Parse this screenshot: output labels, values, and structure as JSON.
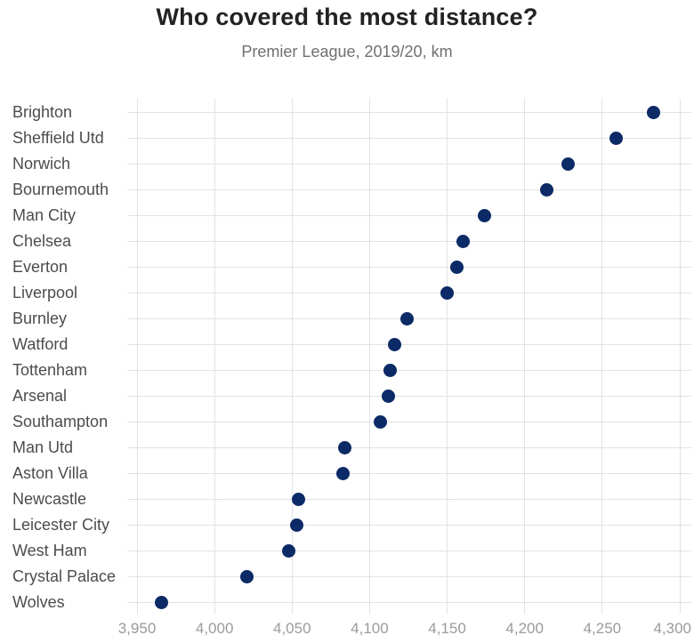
{
  "header": {
    "title": "Who covered the most distance?",
    "subtitle": "Premier League, 2019/20, km"
  },
  "colors": {
    "dot": "#0b2a66",
    "gridline": "#e2e2e2",
    "title_text": "#222222",
    "subtitle_text": "#6f6f6f",
    "label_text": "#4c4c4c",
    "axis_text": "#9b9b9b"
  },
  "chart_data": {
    "type": "scatter",
    "variant": "horizontal-dot-plot",
    "title": "Who covered the most distance?",
    "subtitle": "Premier League, 2019/20, km",
    "xlabel": "",
    "ylabel": "",
    "grid": true,
    "categories": [
      "Brighton",
      "Sheffield Utd",
      "Norwich",
      "Bournemouth",
      "Man City",
      "Chelsea",
      "Everton",
      "Liverpool",
      "Burnley",
      "Watford",
      "Tottenham",
      "Arsenal",
      "Southampton",
      "Man Utd",
      "Aston Villa",
      "Newcastle",
      "Leicester City",
      "West Ham",
      "Crystal Palace",
      "Wolves"
    ],
    "values": [
      4283,
      4259,
      4228,
      4214,
      4174,
      4160,
      4156,
      4150,
      4124,
      4116,
      4113,
      4112,
      4107,
      4084,
      4083,
      4054,
      4053,
      4048,
      4021,
      3966
    ],
    "units": "km",
    "x_ticks": [
      3950,
      4000,
      4050,
      4100,
      4150,
      4200,
      4250,
      4300
    ],
    "x_tick_labels": [
      "3,950",
      "4,000",
      "4,050",
      "4,100",
      "4,150",
      "4,200",
      "4,250",
      "4,300"
    ],
    "xlim": [
      3950,
      4300
    ]
  }
}
